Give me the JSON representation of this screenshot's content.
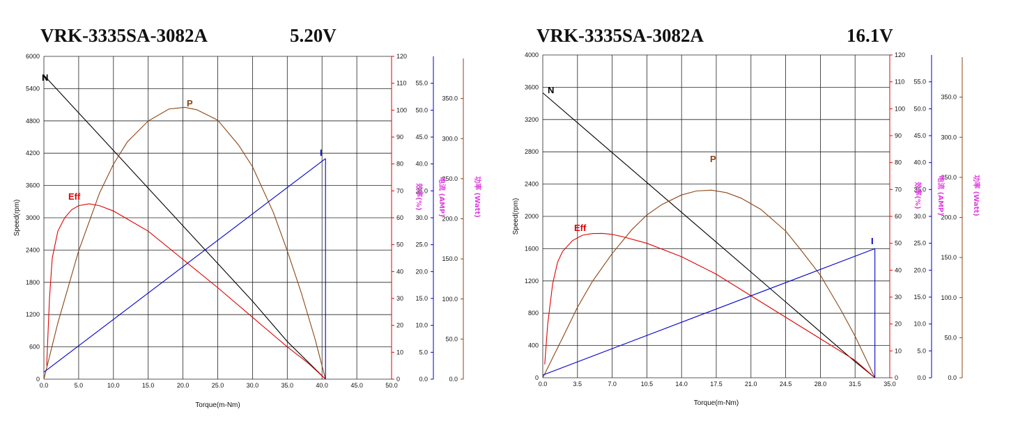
{
  "chart_data": [
    {
      "type": "line",
      "title": "VRK-3335SA-3082A",
      "voltage": "5.20V",
      "xlabel": "Torque(m-Nm)",
      "ylabel": "Speed(rpm)",
      "eff_axis_label": "效率(%)",
      "current_axis_label": "电流 (AMP)",
      "power_axis_label": "功率 (Watt)",
      "xlim": [
        0,
        50
      ],
      "ylim": [
        0,
        6000
      ],
      "x_ticks": [
        "0.0",
        "5.0",
        "10.0",
        "15.0",
        "20.0",
        "25.0",
        "30.0",
        "35.0",
        "40.0",
        "45.0",
        "50.0"
      ],
      "y_ticks": [
        "0",
        "600",
        "1200",
        "1800",
        "2400",
        "3000",
        "3600",
        "4200",
        "4800",
        "5400",
        "6000"
      ],
      "eff_lim": [
        0,
        120
      ],
      "eff_ticks": [
        "0",
        "10",
        "20",
        "30",
        "40",
        "50",
        "60",
        "70",
        "80",
        "90",
        "100",
        "110",
        "120"
      ],
      "current_lim": [
        0,
        60
      ],
      "current_ticks": [
        "0.0",
        "5.0",
        "10.0",
        "15.0",
        "20.0",
        "25.0",
        "30.0",
        "35.0",
        "40.0",
        "45.0",
        "50.0",
        "55.0"
      ],
      "power_lim": [
        0,
        400
      ],
      "power_ticks": [
        "0.0",
        "50.0",
        "100.0",
        "150.0",
        "200.0",
        "250.0",
        "300.0",
        "350.0"
      ],
      "series": [
        {
          "name": "N",
          "axis": "speed",
          "color": "#000000",
          "x": [
            0,
            5,
            10,
            15,
            20,
            25,
            30,
            35,
            40.5
          ],
          "values": [
            5650,
            4950,
            4250,
            3550,
            2850,
            2150,
            1450,
            700,
            0
          ]
        },
        {
          "name": "P",
          "axis": "power",
          "color": "#8b4513",
          "x": [
            0,
            2,
            5,
            8,
            10,
            12,
            15,
            18,
            20.3,
            22,
            25,
            28,
            30,
            33,
            35,
            37,
            39,
            40.5
          ],
          "values": [
            0,
            70,
            160,
            232,
            268,
            296,
            322,
            337,
            339,
            336,
            323,
            292,
            265,
            208,
            160,
            108,
            50,
            0
          ]
        },
        {
          "name": "Eff",
          "axis": "eff",
          "color": "#e00000",
          "x": [
            0.4,
            0.8,
            1.2,
            2,
            3,
            4,
            5,
            6.5,
            8,
            10,
            12,
            15,
            20,
            25,
            30,
            35,
            38,
            40.5
          ],
          "values": [
            5,
            30,
            45,
            55,
            60,
            63,
            64.5,
            65.2,
            64.5,
            62.5,
            59.5,
            55,
            44.5,
            34,
            23,
            12,
            6,
            0
          ]
        },
        {
          "name": "I",
          "axis": "current",
          "color": "#0000cc",
          "x": [
            0,
            40.5
          ],
          "values": [
            1.3,
            41.0
          ]
        }
      ],
      "i_drop": 41.0
    },
    {
      "type": "line",
      "title": "VRK-3335SA-3082A",
      "voltage": "16.1V",
      "xlabel": "Torque(m-Nm)",
      "ylabel": "Speed(rpm)",
      "eff_axis_label": "效率(%)",
      "current_axis_label": "电流 (AMP)",
      "power_axis_label": "功率 (Watt)",
      "xlim": [
        0,
        35
      ],
      "ylim": [
        0,
        4000
      ],
      "x_ticks": [
        "0.0",
        "3.5",
        "7.0",
        "10.5",
        "14.0",
        "17.5",
        "21.0",
        "24.5",
        "28.0",
        "31.5",
        "35.0"
      ],
      "y_ticks": [
        "0",
        "400",
        "800",
        "1200",
        "1600",
        "2000",
        "2400",
        "2800",
        "3200",
        "3600",
        "4000"
      ],
      "eff_lim": [
        0,
        120
      ],
      "eff_ticks": [
        "0",
        "10",
        "20",
        "30",
        "40",
        "50",
        "60",
        "70",
        "80",
        "90",
        "100",
        "110",
        "120"
      ],
      "current_lim": [
        0,
        60
      ],
      "current_ticks": [
        "0.0",
        "5.0",
        "10.0",
        "15.0",
        "20.0",
        "25.0",
        "30.0",
        "35.0",
        "40.0",
        "45.0",
        "50.0",
        "55.0"
      ],
      "power_lim": [
        0,
        400
      ],
      "power_ticks": [
        "0.0",
        "50.0",
        "100.0",
        "150.0",
        "200.0",
        "250.0",
        "300.0",
        "350.0"
      ],
      "series": [
        {
          "name": "N",
          "axis": "speed",
          "color": "#000000",
          "x": [
            0,
            3.5,
            7,
            10.5,
            14,
            17.5,
            21,
            24.5,
            28,
            31.5,
            33.5
          ],
          "values": [
            3530,
            3160,
            2790,
            2420,
            2050,
            1680,
            1310,
            940,
            570,
            200,
            0
          ]
        },
        {
          "name": "P",
          "axis": "power",
          "color": "#8b4513",
          "x": [
            0,
            2,
            3.5,
            5,
            7,
            9,
            10.5,
            12,
            14,
            15.5,
            17,
            18.5,
            20,
            22,
            24.5,
            26,
            28,
            30,
            31.5,
            33.5
          ],
          "values": [
            0,
            50,
            88,
            120,
            155,
            185,
            203,
            216,
            228,
            233,
            234,
            231,
            224,
            210,
            183,
            160,
            128,
            86,
            52,
            0
          ]
        },
        {
          "name": "Eff",
          "axis": "eff",
          "color": "#e00000",
          "x": [
            0.2,
            0.5,
            1,
            1.5,
            2,
            3,
            4,
            5,
            6,
            7,
            8,
            10.5,
            14,
            17.5,
            21,
            24.5,
            28,
            31.5,
            33.5
          ],
          "values": [
            5,
            20,
            35,
            43,
            47,
            51,
            53,
            53.6,
            53.7,
            53.3,
            52.5,
            50,
            45,
            38.5,
            30.5,
            22.5,
            14.5,
            6.5,
            0
          ]
        },
        {
          "name": "I",
          "axis": "current",
          "color": "#0000cc",
          "x": [
            0,
            33.5
          ],
          "values": [
            0.5,
            24.0
          ]
        }
      ],
      "i_drop": 24.0
    }
  ]
}
